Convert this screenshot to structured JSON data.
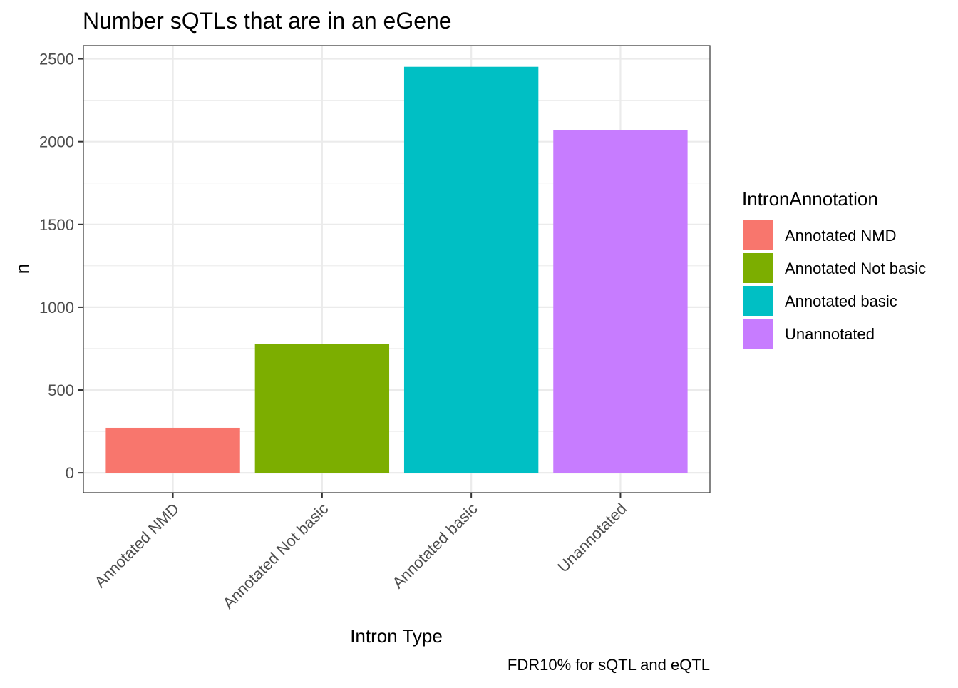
{
  "chart_data": {
    "type": "bar",
    "title": "Number sQTLs that are in an eGene",
    "xlabel": "Intron Type",
    "ylabel": "n",
    "caption": "FDR10% for sQTL and eQTL",
    "categories": [
      "Annotated NMD",
      "Annotated Not basic",
      "Annotated basic",
      "Unannotated"
    ],
    "values": [
      272,
      778,
      2452,
      2070
    ],
    "colors": [
      "#F8766D",
      "#7CAE00",
      "#00BFC4",
      "#C77CFF"
    ],
    "ylim": [
      -120,
      2580
    ],
    "yticks": [
      0,
      500,
      1000,
      1500,
      2000,
      2500
    ],
    "ytick_labels": [
      "0",
      "500",
      "1000",
      "1500",
      "2000",
      "2500"
    ],
    "grid": true,
    "legend": {
      "title": "IntronAnnotation",
      "placement": "right",
      "entries": [
        "Annotated NMD",
        "Annotated Not basic",
        "Annotated basic",
        "Unannotated"
      ]
    }
  }
}
